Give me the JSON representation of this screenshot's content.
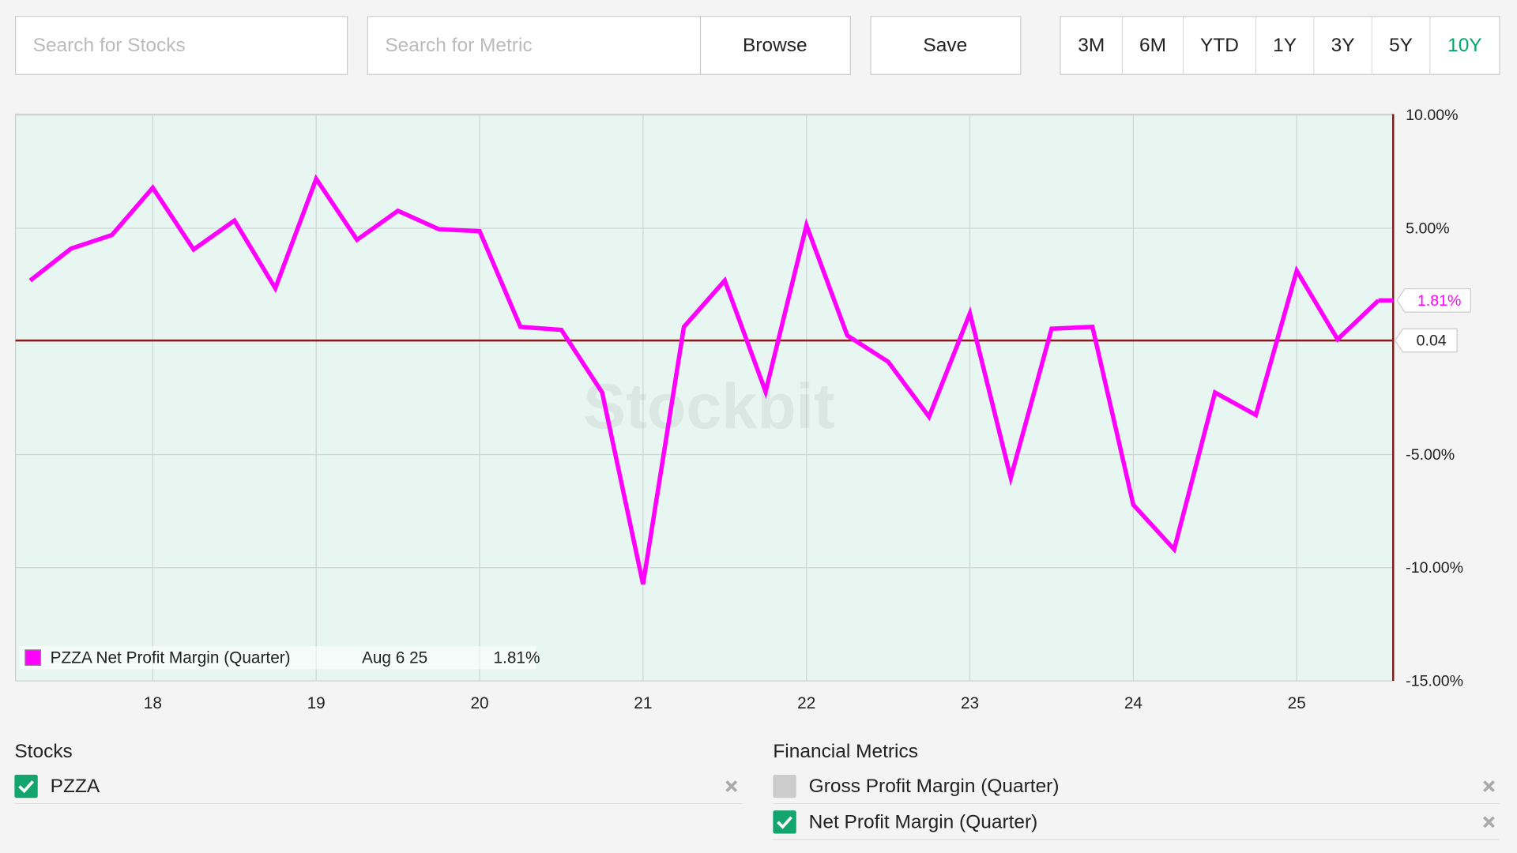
{
  "toolbar": {
    "stock_search_placeholder": "Search for Stocks",
    "metric_search_placeholder": "Search for Metric",
    "browse": "Browse",
    "save": "Save",
    "ranges": [
      "3M",
      "6M",
      "YTD",
      "1Y",
      "3Y",
      "5Y",
      "10Y"
    ],
    "active_range": "10Y"
  },
  "chart_data": {
    "type": "line",
    "watermark": "Stockbit",
    "x": [
      17.25,
      17.5,
      17.75,
      18,
      18.25,
      18.5,
      18.75,
      19,
      19.25,
      19.5,
      19.75,
      20,
      20.25,
      20.5,
      20.75,
      21,
      21.25,
      21.5,
      21.75,
      22,
      22.25,
      22.5,
      22.75,
      23,
      23.25,
      23.5,
      23.75,
      24,
      24.25,
      24.5,
      24.75,
      25,
      25.25,
      25.5
    ],
    "series": [
      {
        "name": "PZZA Net Profit Margin (Quarter)",
        "color": "#ff00ff",
        "values": [
          2.69,
          4.1,
          4.7,
          6.79,
          4.06,
          5.34,
          2.35,
          7.18,
          4.49,
          5.77,
          4.96,
          4.87,
          0.64,
          0.51,
          -2.26,
          -10.73,
          0.64,
          2.69,
          -2.22,
          5.13,
          0.26,
          -0.9,
          -3.33,
          1.24,
          -6.03,
          0.56,
          0.64,
          -7.22,
          -9.19,
          -2.26,
          -3.25,
          3.12,
          0.09,
          1.81
        ],
        "end_label": "1.81%"
      }
    ],
    "tooltip": {
      "date": "Aug 6 25",
      "value_label": "1.81%"
    },
    "reference_line": {
      "value": 0.04,
      "label": "0.04",
      "color": "#8b1a1a"
    },
    "xlim": [
      17.16,
      25.59
    ],
    "xticks": [
      18,
      19,
      20,
      21,
      22,
      23,
      24,
      25
    ],
    "ylim": [
      -15,
      10
    ],
    "yticks": [
      {
        "value": 10,
        "label": "10.00%"
      },
      {
        "value": 5,
        "label": "5.00%"
      },
      {
        "value": -5,
        "label": "-5.00%"
      },
      {
        "value": -10,
        "label": "-10.00%"
      },
      {
        "value": -15,
        "label": "-15.00%"
      }
    ],
    "grid": true
  },
  "stocks": {
    "title": "Stocks",
    "items": [
      {
        "name": "PZZA",
        "checked": true
      }
    ]
  },
  "metrics": {
    "title": "Financial Metrics",
    "items": [
      {
        "name": "Gross Profit Margin (Quarter)",
        "checked": false
      },
      {
        "name": "Net Profit Margin (Quarter)",
        "checked": true
      }
    ]
  }
}
